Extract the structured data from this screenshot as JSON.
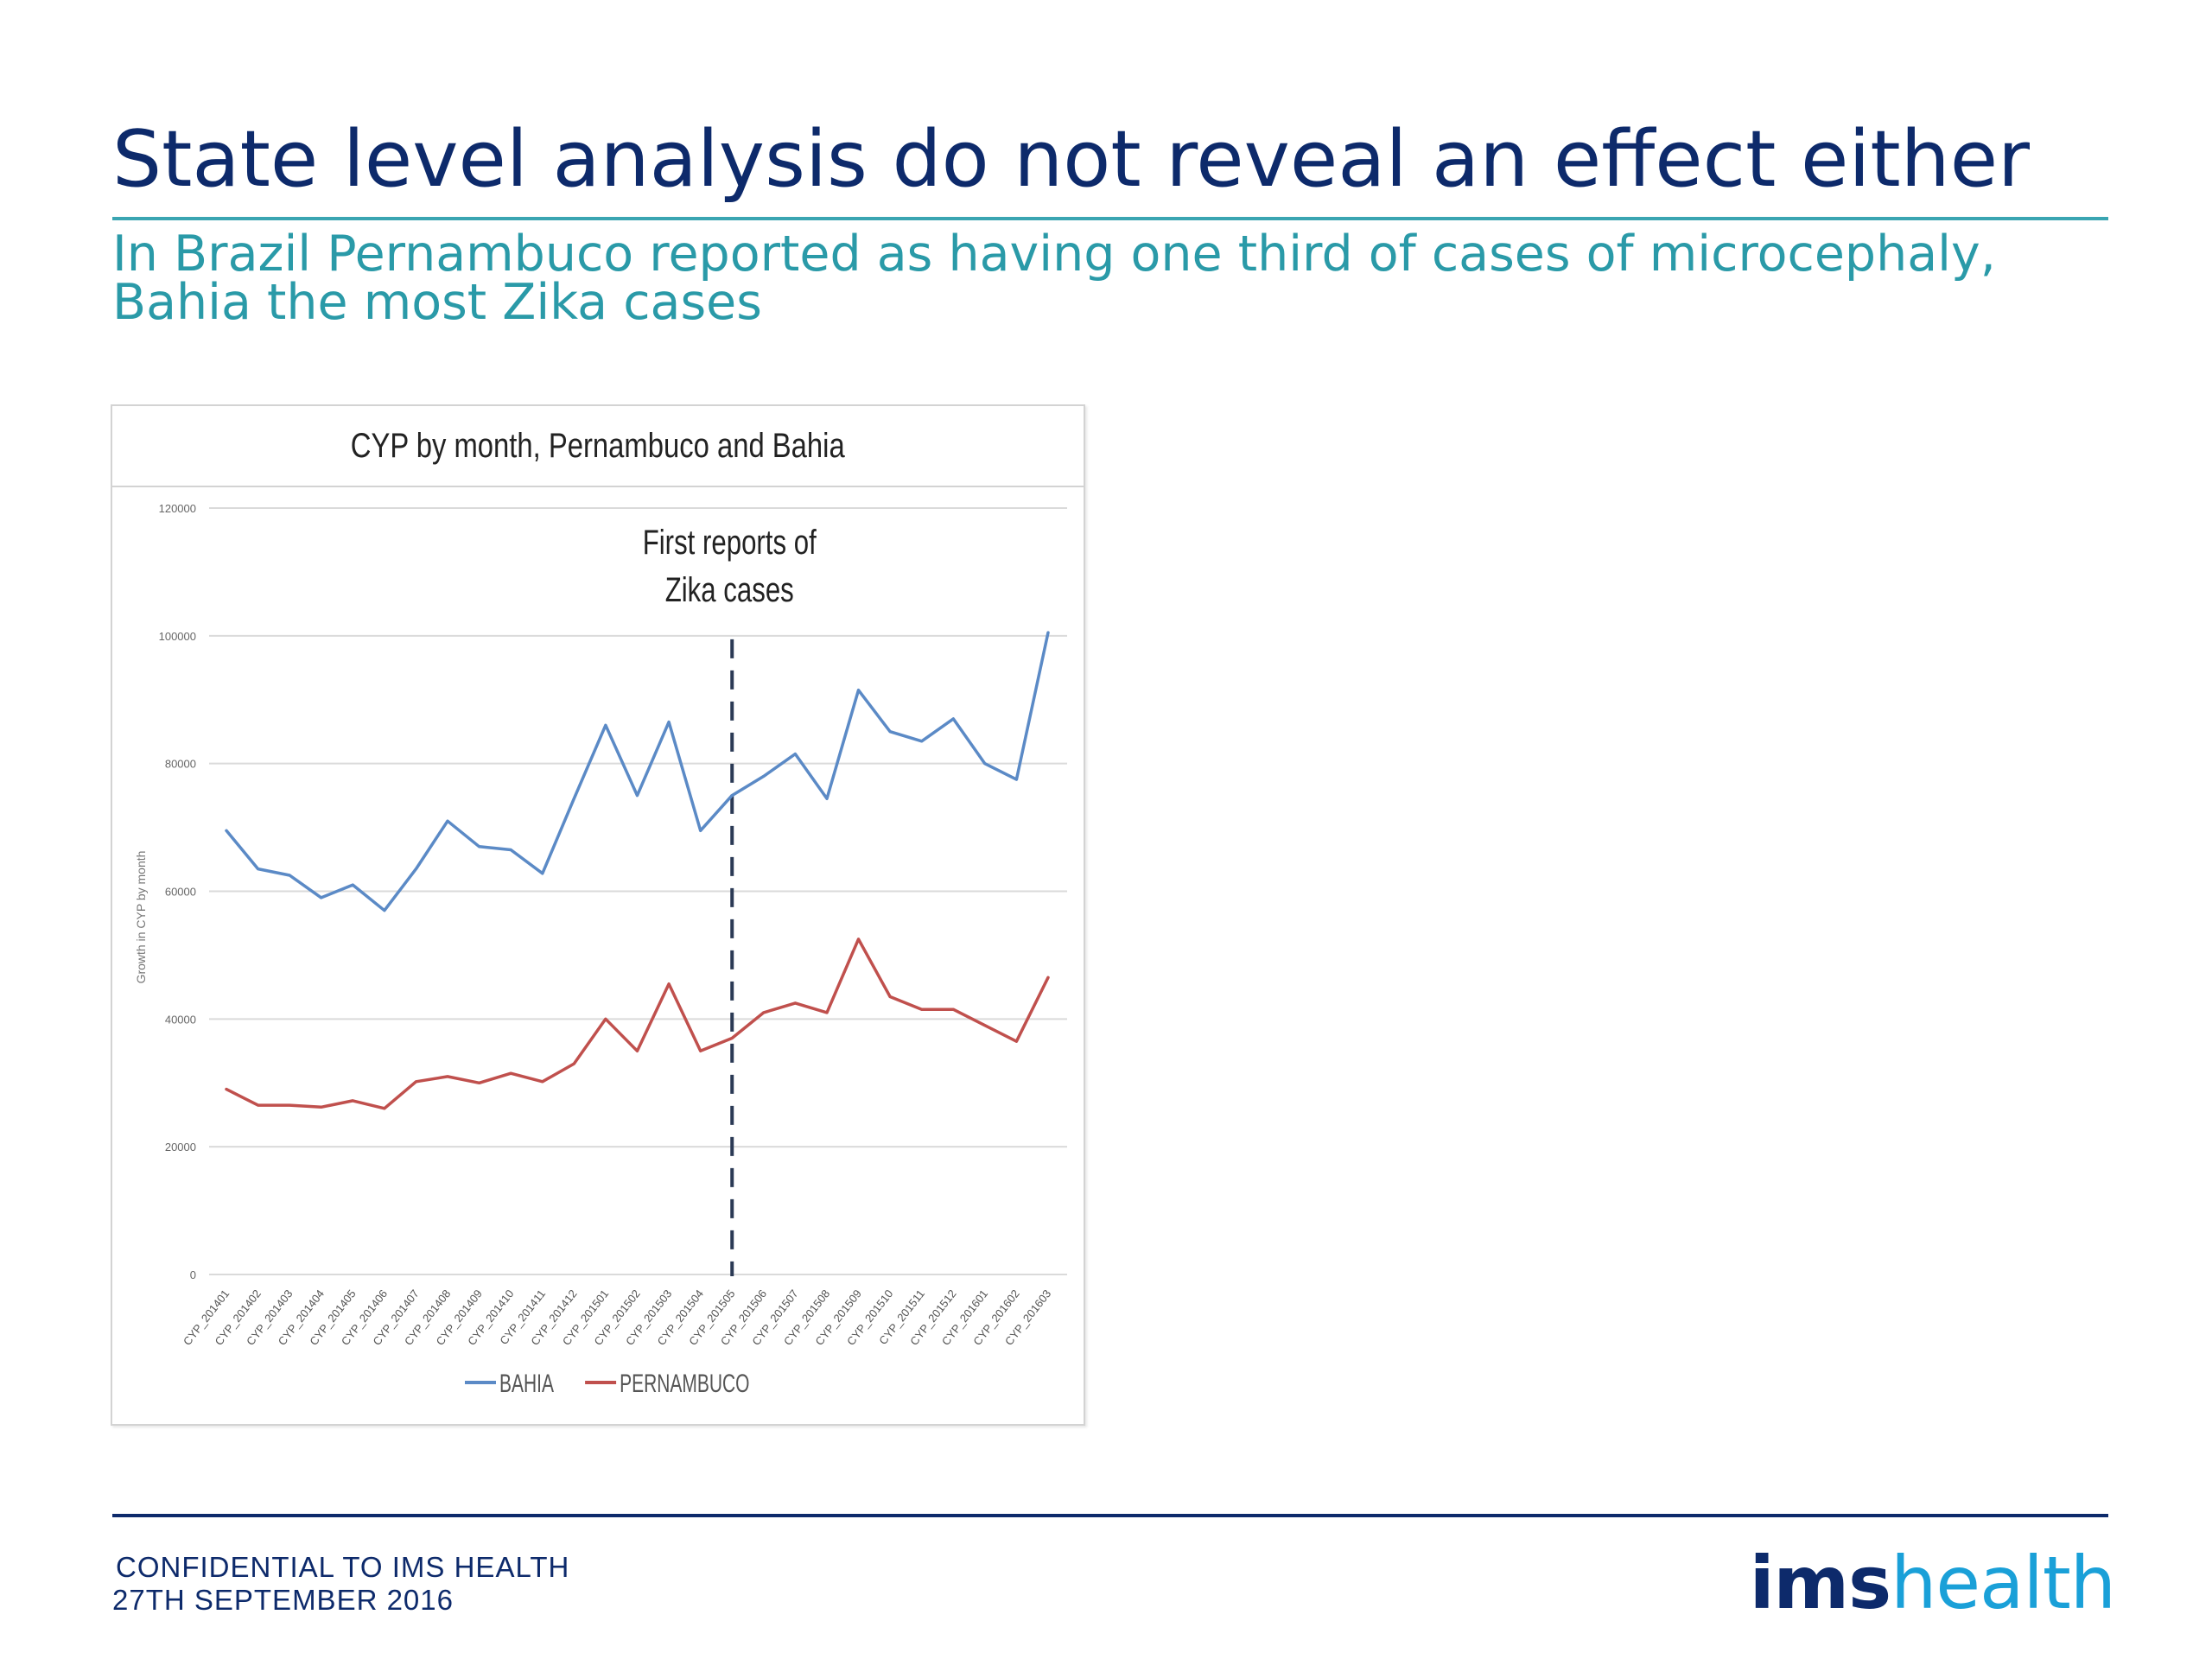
{
  "slide": {
    "title": "State level analysis do not reveal an effect either",
    "subtitle": "In Brazil Pernambuco reported as having one third of cases of microcephaly,\nBahia the most Zika cases",
    "footer_line1": "CONFIDENTIAL TO IMS HEALTH",
    "footer_line2": "27TH SEPTEMBER 2016",
    "logo_ims": "ims",
    "logo_health": "health",
    "colors": {
      "title": "#0d2a6b",
      "subtitle": "#2a9aa8",
      "rule_top": "#3aa5b2",
      "rule_bottom": "#0d2a6b",
      "logo_health": "#1aa0d8"
    }
  },
  "chart_data": {
    "type": "line",
    "title": "CYP by month,  Pernambuco  and Bahia",
    "ylabel": "Growth in CYP by month",
    "xlabel": "",
    "ylim": [
      0,
      120000
    ],
    "yticks": [
      0,
      20000,
      40000,
      60000,
      80000,
      100000,
      120000
    ],
    "categories": [
      "CYP_201401",
      "CYP_201402",
      "CYP_201403",
      "CYP_201404",
      "CYP_201405",
      "CYP_201406",
      "CYP_201407",
      "CYP_201408",
      "CYP_201409",
      "CYP_201410",
      "CYP_201411",
      "CYP_201412",
      "CYP_201501",
      "CYP_201502",
      "CYP_201503",
      "CYP_201504",
      "CYP_201505",
      "CYP_201506",
      "CYP_201507",
      "CYP_201508",
      "CYP_201509",
      "CYP_201510",
      "CYP_201511",
      "CYP_201512",
      "CYP_201601",
      "CYP_201602",
      "CYP_201603"
    ],
    "series": [
      {
        "name": "BAHIA",
        "color": "#5b8ac6",
        "values": [
          69500,
          63500,
          62500,
          59000,
          61000,
          57000,
          63500,
          71000,
          67000,
          66500,
          62800,
          74500,
          86000,
          75000,
          86500,
          69500,
          75000,
          78000,
          81500,
          74500,
          91500,
          85000,
          83500,
          87000,
          80000,
          77500,
          100500
        ]
      },
      {
        "name": "PERNAMBUCO",
        "color": "#c0504d",
        "values": [
          29000,
          26500,
          26500,
          26200,
          27200,
          26000,
          30200,
          31000,
          30000,
          31500,
          30200,
          33000,
          40000,
          35000,
          45500,
          35000,
          37000,
          41000,
          42500,
          41000,
          52500,
          43500,
          41500,
          41500,
          39000,
          36500,
          46500
        ]
      }
    ],
    "annotation": {
      "text_line1": "First reports of",
      "text_line2": "Zika cases",
      "at_category": "CYP_201505"
    },
    "legend_position": "bottom",
    "grid": true
  }
}
